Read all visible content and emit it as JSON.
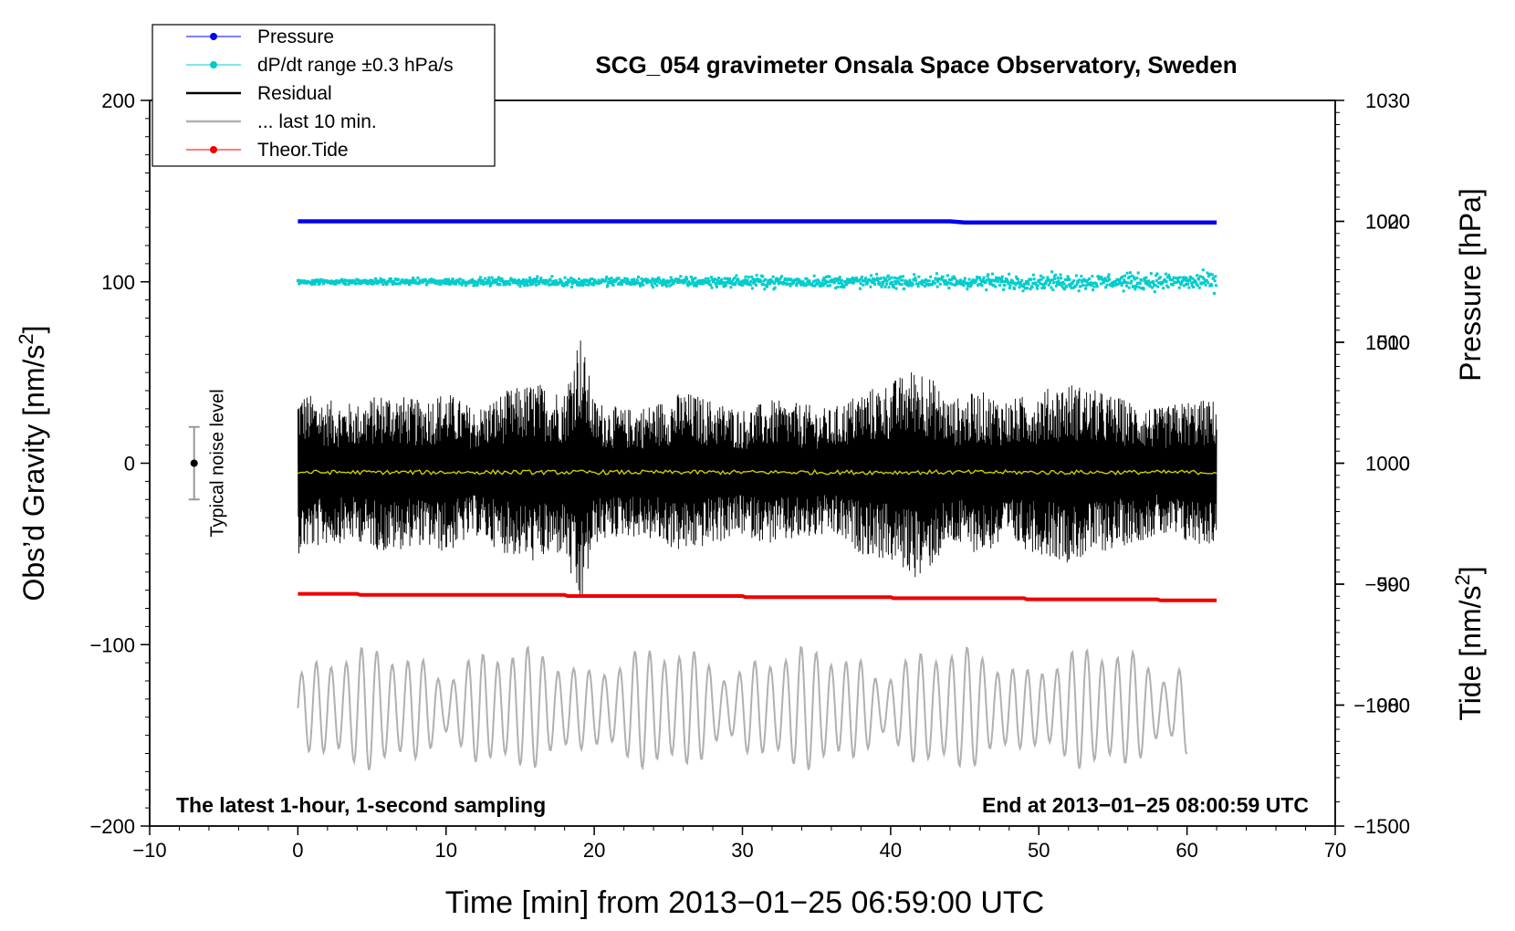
{
  "chart_data": {
    "type": "line",
    "title": "SCG_054 gravimeter Onsala Space Observatory, Sweden",
    "xlabel": "Time [min] from 2013−01−25 06:59:00 UTC",
    "ylabel": "Obs’d Gravity [nm/s",
    "ylabel_sup": "2",
    "ylabel_end": "]",
    "right_label_pressure": "Pressure [hPa]",
    "right_label_tide": "Tide [nm/s",
    "right_label_tide_sup": "2",
    "right_label_tide_end": "]",
    "xlim": [
      -10,
      70
    ],
    "ylim": [
      -200,
      200
    ],
    "pressure_lim": [
      970,
      1030
    ],
    "tide_lim": [
      -1500,
      1500
    ],
    "x_ticks": [
      "−10",
      "0",
      "10",
      "20",
      "30",
      "40",
      "50",
      "60",
      "70"
    ],
    "y_ticks": [
      "−200",
      "−100",
      "0",
      "100",
      "200"
    ],
    "pressure_ticks": [
      "980",
      "990",
      "1000",
      "1010",
      "1020",
      "1030"
    ],
    "tide_ticks": [
      "−1500",
      "−1000",
      "−500",
      "0",
      "500",
      "1000"
    ],
    "annotation_left": "The latest 1-hour, 1-second sampling",
    "annotation_right": "End at 2013−01−25 08:00:59 UTC",
    "noise_label": "Typical noise level",
    "noise_bar": {
      "x": -7,
      "center": 0,
      "low": -20,
      "high": 20
    },
    "legend": [
      {
        "label": "Pressure",
        "color": "#0000ee"
      },
      {
        "label": "dP/dt range ±0.3 hPa/s",
        "color": "#00cccc"
      },
      {
        "label": "Residual",
        "color": "#000000"
      },
      {
        "label": "... last 10 min.",
        "color": "#b0b0b0"
      },
      {
        "label": "Theor.Tide",
        "color": "#ee0000"
      }
    ],
    "series": [
      {
        "name": "Pressure",
        "color": "#0000ee",
        "x": [
          0,
          44,
          45,
          62
        ],
        "values": [
          1020.0,
          1020.0,
          1019.9,
          1019.9
        ]
      },
      {
        "name": "dP/dt range",
        "color": "#00cccc",
        "center": 100,
        "spread_start": 2,
        "spread_end": 7
      },
      {
        "name": "Residual",
        "color": "#000000",
        "x_start": 0,
        "x_end": 62,
        "mean": -5,
        "envelope_x": [
          0,
          2,
          4,
          6,
          8,
          10,
          12,
          14,
          16,
          18,
          19,
          20,
          22,
          24,
          26,
          28,
          30,
          32,
          34,
          36,
          38,
          40,
          42,
          44,
          46,
          48,
          50,
          52,
          54,
          56,
          58,
          60,
          62
        ],
        "envelope": [
          45,
          40,
          38,
          45,
          40,
          45,
          35,
          45,
          50,
          45,
          80,
          40,
          35,
          38,
          45,
          40,
          35,
          40,
          38,
          35,
          45,
          50,
          60,
          40,
          45,
          40,
          45,
          50,
          45,
          40,
          35,
          40,
          40
        ]
      },
      {
        "name": "Residual running mean",
        "color": "#cccc00",
        "value": -5
      },
      {
        "name": "Theor.Tide",
        "color": "#ee0000",
        "x": [
          0,
          4,
          4.2,
          18,
          18.2,
          30,
          30.2,
          40,
          40.2,
          49,
          49.2,
          58,
          58.2,
          62
        ],
        "values": [
          -72,
          -72,
          -72.6,
          -72.6,
          -73.2,
          -73.2,
          -73.8,
          -73.8,
          -74.4,
          -74.4,
          -75,
          -75,
          -75.6,
          -75.6
        ]
      },
      {
        "name": "... last 10 min.",
        "color": "#b0b0b0",
        "x_start": 0,
        "x_end": 60,
        "center": -135,
        "amplitude": 30
      }
    ]
  }
}
